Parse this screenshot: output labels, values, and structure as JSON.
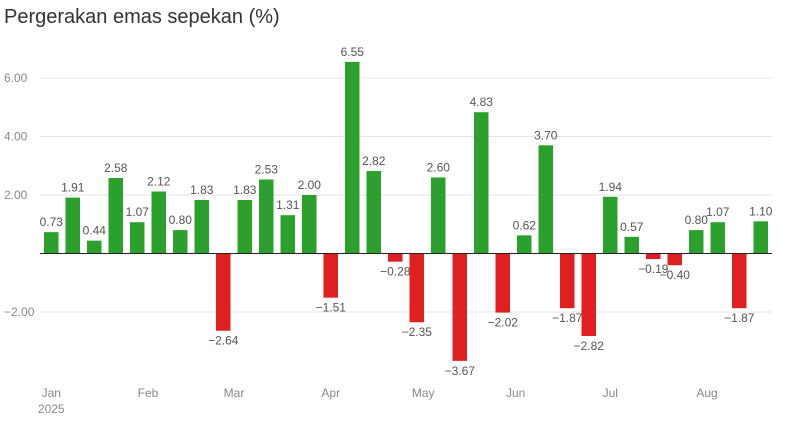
{
  "chart_data": {
    "type": "bar",
    "title": "Pergerakan emas sepekan (%)",
    "ylim": [
      -4.5,
      7.5
    ],
    "y_ticks": [
      {
        "value": 6,
        "label": "6.00"
      },
      {
        "value": 4,
        "label": "4.00"
      },
      {
        "value": 2,
        "label": "2.00"
      },
      {
        "value": -2,
        "label": "−2.00"
      }
    ],
    "grid": true,
    "x_tick_labels": [
      {
        "label": "Jan",
        "index": 0
      },
      {
        "label": "Feb",
        "index": 4.5
      },
      {
        "label": "Mar",
        "index": 8.5
      },
      {
        "label": "Apr",
        "index": 13
      },
      {
        "label": "May",
        "index": 17.3
      },
      {
        "label": "Jun",
        "index": 21.6
      },
      {
        "label": "Jul",
        "index": 26
      },
      {
        "label": "Aug",
        "index": 30.5
      }
    ],
    "year_label": "2025",
    "values": [
      0.73,
      1.91,
      0.44,
      2.58,
      1.07,
      2.12,
      0.8,
      1.83,
      -2.64,
      1.83,
      2.53,
      1.31,
      2.0,
      -1.51,
      6.55,
      2.82,
      -0.28,
      -2.35,
      2.6,
      -3.67,
      4.83,
      -2.02,
      0.62,
      3.7,
      -1.87,
      -2.82,
      1.94,
      0.57,
      -0.19,
      -0.4,
      0.8,
      1.07,
      -1.87,
      1.1
    ],
    "labels": [
      "0.73",
      "1.91",
      "0.44",
      "2.58",
      "1.07",
      "2.12",
      "0.80",
      "1.83",
      "−2.64",
      "1.83",
      "2.53",
      "1.31",
      "2.00",
      "−1.51",
      "6.55",
      "2.82",
      "−0.28",
      "−2.35",
      "2.60",
      "−3.67",
      "4.83",
      "−2.02",
      "0.62",
      "3.70",
      "−1.87",
      "−2.82",
      "1.94",
      "0.57",
      "−0.19",
      "−0.40",
      "0.80",
      "1.07",
      "−1.87",
      "1.10"
    ],
    "colors": {
      "positive": "#2ca02c",
      "negative": "#e02020",
      "grid": "#e6e6e6",
      "zero_line": "#222222"
    }
  }
}
